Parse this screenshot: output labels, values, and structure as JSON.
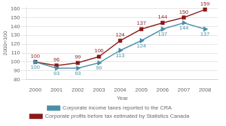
{
  "chart_data": {
    "type": "line",
    "xlabel": "Year",
    "ylabel": "2000=100",
    "x": [
      2000,
      2001,
      2002,
      2003,
      2004,
      2005,
      2006,
      2007,
      2008
    ],
    "series": [
      {
        "name": "Corporate income taxes reported to the CRA",
        "color": "#4a8fa8",
        "marker": "triangle",
        "values": [
          100,
          93,
          93,
          99,
          113,
          124,
          137,
          144,
          137
        ]
      },
      {
        "name": "Corporate profits before tax estimated by Statistics Canada",
        "color": "#8b1a1a",
        "marker": "square",
        "values": [
          100,
          96,
          99,
          106,
          124,
          137,
          144,
          150,
          159
        ]
      }
    ],
    "xlim": [
      1999.6,
      2008.6
    ],
    "xticks": [
      2000,
      2001,
      2002,
      2003,
      2004,
      2005,
      2006,
      2007,
      2008
    ],
    "ylim": [
      80,
      162
    ],
    "yticks": [
      80,
      90,
      100,
      110,
      120,
      130,
      140,
      150,
      160
    ],
    "grid": "y",
    "legend": "bottom",
    "data_labels": true
  }
}
